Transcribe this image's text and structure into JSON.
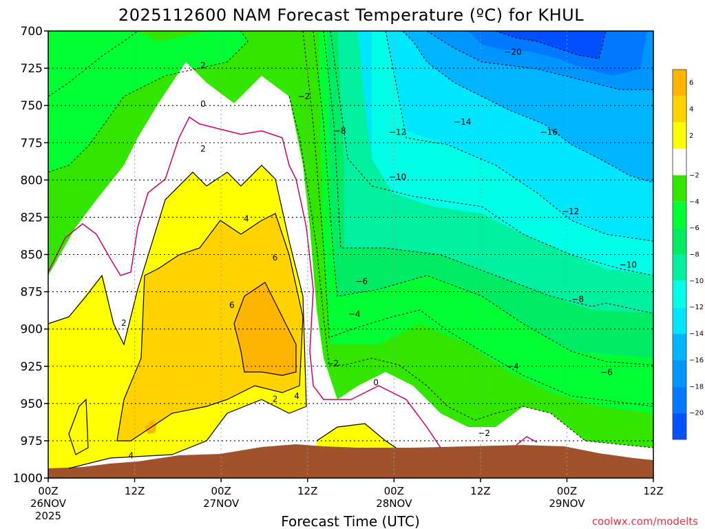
{
  "chart_data": {
    "type": "heatmap",
    "title": "2025112600 NAM Forecast Temperature (ºC) for KHUL",
    "xlabel": "Forecast Time (UTC)",
    "ylabel": "",
    "credit": "coolwx.com/modelts",
    "ylim": [
      1000,
      700
    ],
    "y_ticks": [
      700,
      725,
      750,
      775,
      800,
      825,
      850,
      875,
      900,
      925,
      950,
      975,
      1000
    ],
    "x_ticks": [
      {
        "hour": 0,
        "time": "00Z",
        "date": "26NOV",
        "year": "2025"
      },
      {
        "hour": 12,
        "time": "12Z",
        "date": "",
        "year": ""
      },
      {
        "hour": 24,
        "time": "00Z",
        "date": "27NOV",
        "year": ""
      },
      {
        "hour": 36,
        "time": "12Z",
        "date": "",
        "year": ""
      },
      {
        "hour": 48,
        "time": "00Z",
        "date": "28NOV",
        "year": ""
      },
      {
        "hour": 60,
        "time": "12Z",
        "date": "",
        "year": ""
      },
      {
        "hour": 72,
        "time": "00Z",
        "date": "29NOV",
        "year": ""
      },
      {
        "hour": 84,
        "time": "12Z",
        "date": "",
        "year": ""
      }
    ],
    "xlim": [
      0,
      84
    ],
    "grid": true,
    "colorbar": {
      "position": "right",
      "bins": [
        {
          "lo": 6,
          "hi": 8,
          "color": "#ffb400"
        },
        {
          "lo": 4,
          "hi": 6,
          "color": "#ffd200"
        },
        {
          "lo": 2,
          "hi": 4,
          "color": "#ffff00"
        },
        {
          "lo": -2,
          "hi": 2,
          "color": "#ffffff"
        },
        {
          "lo": -4,
          "hi": -2,
          "color": "#32e600"
        },
        {
          "lo": -6,
          "hi": -4,
          "color": "#00ff32"
        },
        {
          "lo": -8,
          "hi": -6,
          "color": "#00eb64"
        },
        {
          "lo": -10,
          "hi": -8,
          "color": "#00f0a0"
        },
        {
          "lo": -12,
          "hi": -10,
          "color": "#00ffe6"
        },
        {
          "lo": -14,
          "hi": -12,
          "color": "#00e6ff"
        },
        {
          "lo": -16,
          "hi": -14,
          "color": "#00b4ff"
        },
        {
          "lo": -18,
          "hi": -16,
          "color": "#0096ff"
        },
        {
          "lo": -20,
          "hi": -18,
          "color": "#0078ff"
        },
        {
          "lo": -22,
          "hi": -20,
          "color": "#0050ff"
        }
      ],
      "tick_labels": [
        "6",
        "4",
        "2",
        "−2",
        "−4",
        "−6",
        "−8",
        "−10",
        "−12",
        "−14",
        "−16",
        "−18",
        "−20"
      ]
    },
    "contour_labels": [
      {
        "text": "−20",
        "hour": 64.5,
        "p": 714
      },
      {
        "text": "2",
        "hour": 21.5,
        "p": 723
      },
      {
        "text": "−2",
        "hour": 35.5,
        "p": 744
      },
      {
        "text": "0",
        "hour": 21.5,
        "p": 749
      },
      {
        "text": "−8",
        "hour": 40.5,
        "p": 767
      },
      {
        "text": "−12",
        "hour": 48.5,
        "p": 768
      },
      {
        "text": "−14",
        "hour": 57.5,
        "p": 761
      },
      {
        "text": "−16",
        "hour": 69.5,
        "p": 768
      },
      {
        "text": "2",
        "hour": 21.5,
        "p": 779
      },
      {
        "text": "−10",
        "hour": 48.5,
        "p": 798
      },
      {
        "text": "−12",
        "hour": 72.5,
        "p": 821
      },
      {
        "text": "4",
        "hour": 27.5,
        "p": 826
      },
      {
        "text": "6",
        "hour": 31.5,
        "p": 852
      },
      {
        "text": "−10",
        "hour": 80.5,
        "p": 857
      },
      {
        "text": "−6",
        "hour": 43.5,
        "p": 868
      },
      {
        "text": "6",
        "hour": 25.5,
        "p": 884
      },
      {
        "text": "−8",
        "hour": 73.5,
        "p": 880
      },
      {
        "text": "−4",
        "hour": 42.5,
        "p": 890
      },
      {
        "text": "2",
        "hour": 10.5,
        "p": 896
      },
      {
        "text": "−2",
        "hour": 39.5,
        "p": 923
      },
      {
        "text": "−4",
        "hour": 64.5,
        "p": 925
      },
      {
        "text": "−6",
        "hour": 77.5,
        "p": 929
      },
      {
        "text": "0",
        "hour": 45.5,
        "p": 936
      },
      {
        "text": "2",
        "hour": 31.5,
        "p": 947
      },
      {
        "text": "4",
        "hour": 34.5,
        "p": 945
      },
      {
        "text": "−2",
        "hour": 60.5,
        "p": 970
      },
      {
        "text": "4",
        "hour": 11.5,
        "p": 985
      }
    ],
    "data_note_terrain_color": "#a0522d"
  }
}
